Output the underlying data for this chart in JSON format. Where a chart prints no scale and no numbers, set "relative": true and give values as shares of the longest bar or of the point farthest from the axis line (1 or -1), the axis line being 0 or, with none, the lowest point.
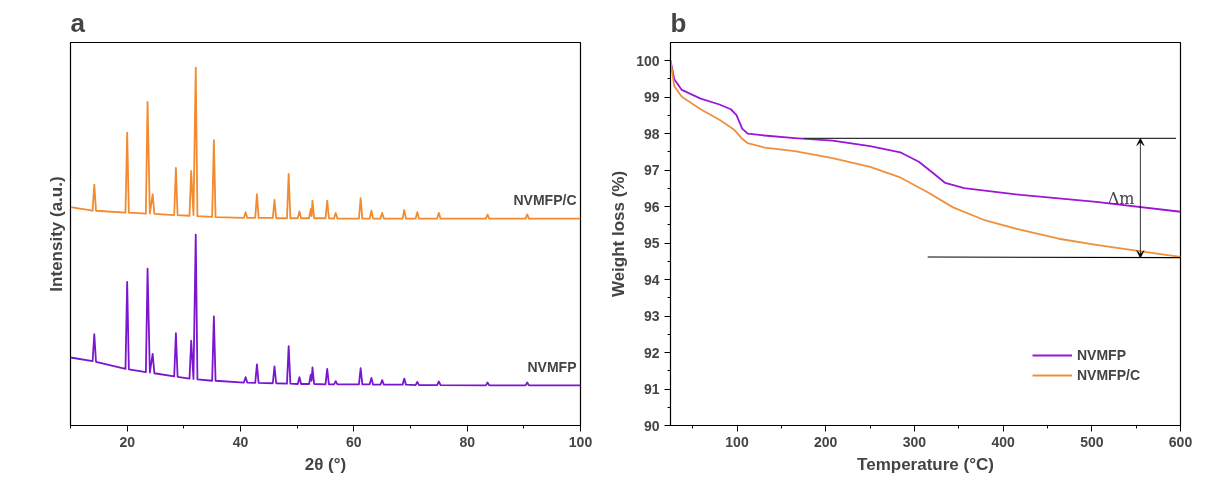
{
  "chart_data": [
    {
      "type": "line",
      "title": "a",
      "xlabel": "2θ (°)",
      "ylabel": "Intensity (a.u.)",
      "relative": true,
      "xlim": [
        10,
        100
      ],
      "xticks": [
        20,
        40,
        60,
        80,
        100
      ],
      "tick_labels": "x",
      "grid": false,
      "legend": false,
      "x": [
        10,
        13.9,
        14.2,
        14.5,
        19.7,
        20.0,
        20.3,
        23.3,
        23.6,
        24.0,
        24.5,
        24.8,
        28.3,
        28.6,
        28.9,
        31.0,
        31.3,
        31.7,
        32.1,
        32.4,
        35.0,
        35.3,
        35.6,
        40.6,
        40.9,
        41.2,
        42.6,
        42.9,
        43.2,
        45.7,
        46.0,
        46.3,
        48.2,
        48.5,
        48.8,
        50.1,
        50.4,
        50.7,
        52.1,
        52.4,
        52.55,
        52.7,
        53.0,
        55.0,
        55.3,
        55.6,
        56.5,
        56.8,
        57.1,
        60.9,
        61.2,
        61.5,
        62.8,
        63.1,
        63.4,
        64.7,
        65.0,
        65.3,
        68.6,
        68.9,
        69.2,
        70.9,
        71.2,
        71.5,
        74.7,
        75.0,
        75.3,
        83.3,
        83.6,
        83.9,
        90.3,
        90.6,
        90.9,
        100
      ],
      "series": [
        {
          "name": "NVMFP/C",
          "color": "#f28a2e",
          "values": [
            0.61,
            0.6,
            0.673,
            0.6,
            0.595,
            0.818,
            0.595,
            0.592,
            0.904,
            0.592,
            0.646,
            0.591,
            0.588,
            0.72,
            0.588,
            0.586,
            0.711,
            0.588,
            1,
            0.585,
            0.583,
            0.797,
            0.582,
            0.58,
            0.596,
            0.58,
            0.58,
            0.646,
            0.58,
            0.58,
            0.63,
            0.579,
            0.579,
            0.703,
            0.579,
            0.579,
            0.598,
            0.579,
            0.579,
            0.605,
            0.585,
            0.628,
            0.579,
            0.579,
            0.628,
            0.579,
            0.578,
            0.594,
            0.578,
            0.578,
            0.635,
            0.578,
            0.578,
            0.6,
            0.578,
            0.578,
            0.594,
            0.578,
            0.578,
            0.602,
            0.578,
            0.578,
            0.596,
            0.578,
            0.578,
            0.594,
            0.578,
            0.578,
            0.589,
            0.578,
            0.578,
            0.59,
            0.578,
            0.578
          ]
        },
        {
          "name": "NVMFP",
          "color": "#7a16d0",
          "values": [
            0.19,
            0.18,
            0.255,
            0.178,
            0.158,
            0.401,
            0.157,
            0.149,
            0.438,
            0.148,
            0.2,
            0.146,
            0.137,
            0.258,
            0.136,
            0.131,
            0.237,
            0.13,
            0.533,
            0.129,
            0.125,
            0.305,
            0.125,
            0.12,
            0.135,
            0.12,
            0.119,
            0.171,
            0.119,
            0.118,
            0.165,
            0.118,
            0.117,
            0.222,
            0.117,
            0.116,
            0.135,
            0.116,
            0.116,
            0.142,
            0.125,
            0.162,
            0.116,
            0.115,
            0.158,
            0.115,
            0.115,
            0.124,
            0.115,
            0.115,
            0.16,
            0.115,
            0.115,
            0.133,
            0.114,
            0.114,
            0.127,
            0.114,
            0.114,
            0.131,
            0.114,
            0.113,
            0.122,
            0.113,
            0.113,
            0.123,
            0.113,
            0.112,
            0.12,
            0.112,
            0.112,
            0.12,
            0.112,
            0.112
          ]
        }
      ]
    },
    {
      "type": "line",
      "title": "b",
      "xlabel": "Temperature (°C)",
      "ylabel": "Weight loss (%)",
      "xlim": [
        25,
        600
      ],
      "xticks": [
        100,
        200,
        300,
        400,
        500,
        600
      ],
      "ylim": [
        90,
        100.5
      ],
      "yticks": [
        90,
        91,
        92,
        93,
        94,
        95,
        96,
        97,
        98,
        99,
        100
      ],
      "grid": false,
      "legend": "bottom right",
      "annotations": [
        "Δm"
      ],
      "series": [
        {
          "name": "NVMFP",
          "color": "#9b16d6",
          "x": [
            25,
            29.3,
            37.7,
            59,
            80.2,
            93,
            99.4,
            105.8,
            112,
            131,
            165,
            207.7,
            250,
            284,
            305,
            322,
            334.8,
            356,
            420,
            505,
            600
          ],
          "values": [
            100,
            99.49,
            99.2,
            98.96,
            98.8,
            98.67,
            98.51,
            98.14,
            98.0,
            97.95,
            97.88,
            97.81,
            97.66,
            97.49,
            97.23,
            96.9,
            96.65,
            96.51,
            96.32,
            96.13,
            95.86
          ]
        },
        {
          "name": "NVMFP/C",
          "color": "#f0903c",
          "x": [
            25,
            29.3,
            37.7,
            59,
            80.2,
            97.2,
            105.8,
            112,
            131,
            165,
            207.7,
            250,
            284,
            314,
            343.6,
            378,
            420,
            462.7,
            505,
            600
          ],
          "values": [
            100,
            99.3,
            99.01,
            98.67,
            98.38,
            98.1,
            97.86,
            97.74,
            97.62,
            97.52,
            97.33,
            97.09,
            96.8,
            96.41,
            95.98,
            95.64,
            95.36,
            95.12,
            94.95,
            94.62
          ]
        },
        {
          "color": "#333333",
          "x": [
            175,
            595
          ],
          "values": [
            97.87,
            97.87
          ]
        },
        {
          "color": "#000000",
          "x": [
            315,
            600
          ],
          "values": [
            94.62,
            94.6
          ]
        }
      ]
    }
  ]
}
